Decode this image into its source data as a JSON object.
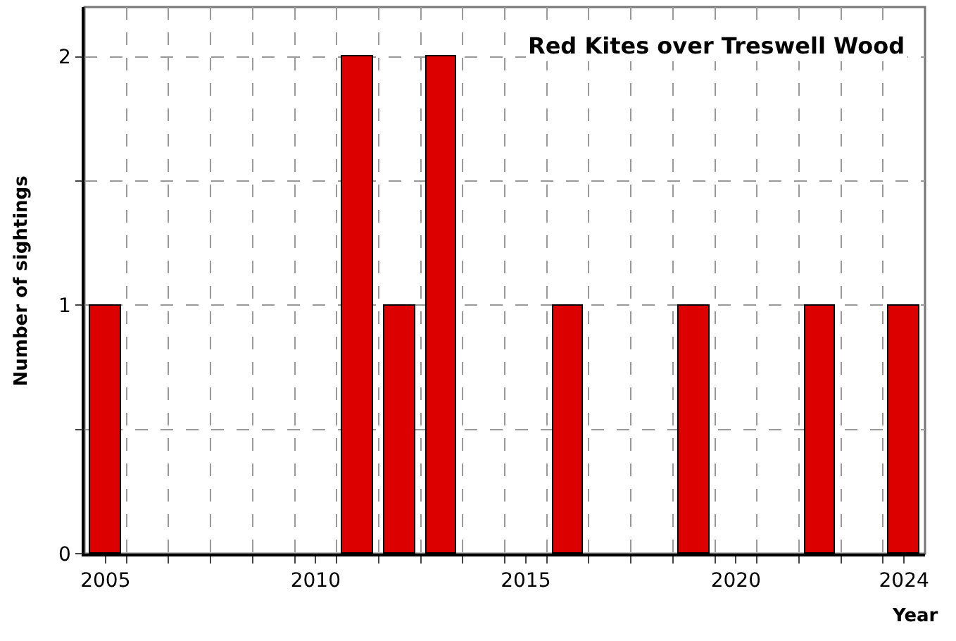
{
  "chart_data": {
    "type": "bar",
    "title": "Red Kites over Treswell Wood",
    "xlabel": "Year",
    "ylabel": "Number of sightings",
    "categories": [
      "2005",
      null,
      null,
      null,
      null,
      "2010",
      null,
      null,
      null,
      null,
      "2015",
      null,
      null,
      null,
      null,
      "2020",
      null,
      null,
      null,
      "2024"
    ],
    "values": [
      1,
      null,
      null,
      null,
      null,
      null,
      2,
      1,
      2,
      null,
      null,
      1,
      null,
      null,
      1,
      null,
      null,
      1,
      null,
      1
    ],
    "color": "#dd0000",
    "ylim": [
      0,
      2.2
    ],
    "yticks": [
      0,
      {
        "value": 0.5,
        "label": null
      },
      1,
      {
        "value": 1.5,
        "label": null
      },
      2
    ],
    "grid": true
  }
}
